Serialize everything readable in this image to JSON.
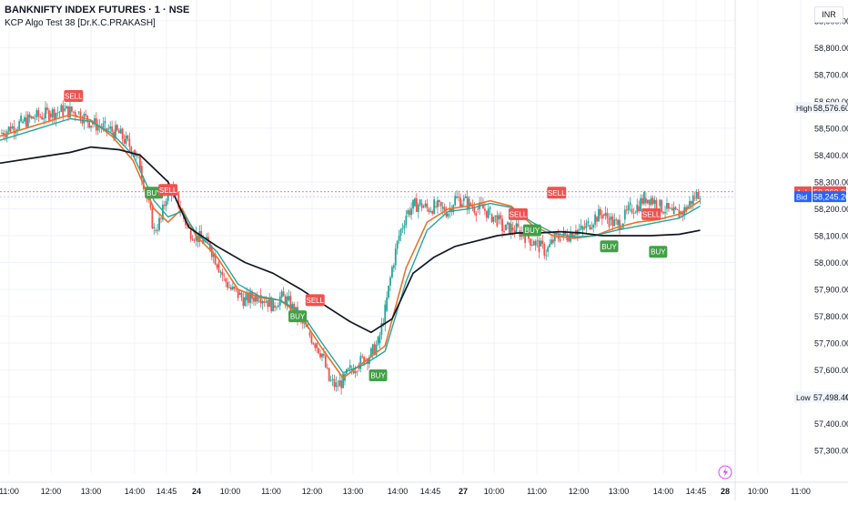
{
  "header": {
    "title": "BANKNIFTY INDEX FUTURES · 1 · NSE",
    "indicator": "KCP Algo Test 38 [Dr.K.C.PRAKASH]",
    "currency": "INR"
  },
  "colors": {
    "bull": "#26a69a",
    "bear": "#ef5350",
    "fast_ma": "#e8722c",
    "slow_ma": "#26a69a",
    "vwap": "#131722",
    "buy": "#43a047",
    "sell": "#ef5350",
    "bid": "#2962ff"
  },
  "chart_data": {
    "type": "line",
    "title": "BANKNIFTY INDEX FUTURES · 1 · NSE",
    "ylim": [
      57250,
      59000
    ],
    "y_ticks": [
      "58,900.00",
      "58,800.00",
      "58,700.00",
      "58,600.00",
      "58,500.00",
      "58,400.00",
      "58,300.00",
      "58,200.00",
      "58,100.00",
      "58,000.00",
      "57,900.00",
      "57,800.00",
      "57,700.00",
      "57,600.00",
      "57,500.00",
      "57,400.00",
      "57,300.00"
    ],
    "x_ticks": [
      "11:00",
      "12:00",
      "13:00",
      "14:00",
      "14:45",
      "24",
      "10:00",
      "11:00",
      "12:00",
      "13:00",
      "14:00",
      "14:45",
      "27",
      "10:00",
      "11:00",
      "12:00",
      "13:00",
      "14:00",
      "14:45",
      "28",
      "10:00",
      "11:00"
    ],
    "grid": true,
    "legend": "none",
    "x_domain": [
      0,
      210
    ],
    "series": [
      {
        "name": "Price",
        "kind": "candles",
        "x": [
          0,
          3,
          6,
          10,
          14,
          18,
          22,
          26,
          30,
          34,
          38,
          40,
          42,
          44,
          46,
          48,
          50,
          52,
          54,
          56,
          58,
          60,
          62,
          64,
          66,
          68,
          70,
          72,
          74,
          76,
          78,
          80,
          82,
          84,
          86,
          88,
          90,
          92,
          94,
          96,
          98,
          100,
          102,
          104,
          106,
          108,
          110,
          112,
          114,
          116,
          118,
          120,
          122,
          124,
          126,
          128,
          130,
          132,
          134,
          136,
          138,
          140,
          142,
          144,
          146,
          148,
          150,
          152,
          154,
          156,
          158,
          160,
          162,
          164,
          166,
          168,
          170,
          172,
          174,
          176,
          178,
          180,
          182,
          184,
          186,
          188,
          190,
          192,
          194,
          196,
          198,
          200
        ],
        "y": [
          58480,
          58500,
          58520,
          58540,
          58555,
          58565,
          58560,
          58520,
          58500,
          58480,
          58420,
          58360,
          58240,
          58120,
          58160,
          58280,
          58260,
          58180,
          58120,
          58100,
          58080,
          58060,
          58000,
          57940,
          57900,
          57880,
          57860,
          57870,
          57880,
          57860,
          57840,
          57870,
          57860,
          57820,
          57780,
          57740,
          57700,
          57660,
          57560,
          57540,
          57560,
          57600,
          57620,
          57640,
          57660,
          57700,
          57820,
          57980,
          58100,
          58180,
          58210,
          58220,
          58200,
          58210,
          58200,
          58190,
          58240,
          58230,
          58220,
          58200,
          58200,
          58180,
          58160,
          58120,
          58130,
          58120,
          58100,
          58080,
          58060,
          58040,
          58080,
          58100,
          58100,
          58120,
          58120,
          58140,
          58170,
          58180,
          58160,
          58140,
          58160,
          58200,
          58210,
          58240,
          58240,
          58210,
          58200,
          58180,
          58180,
          58200,
          58240,
          58263.4
        ]
      },
      {
        "name": "Fast MA",
        "kind": "line",
        "x": [
          0,
          10,
          20,
          26,
          32,
          38,
          44,
          48,
          52,
          56,
          62,
          68,
          74,
          80,
          86,
          92,
          98,
          104,
          110,
          116,
          122,
          128,
          134,
          140,
          146,
          152,
          158,
          164,
          170,
          176,
          182,
          188,
          194,
          200
        ],
        "y": [
          58470,
          58510,
          58550,
          58530,
          58470,
          58380,
          58200,
          58150,
          58200,
          58100,
          58020,
          57900,
          57870,
          57860,
          57800,
          57680,
          57570,
          57630,
          57690,
          57980,
          58150,
          58200,
          58210,
          58230,
          58210,
          58140,
          58100,
          58090,
          58100,
          58130,
          58150,
          58160,
          58180,
          58230
        ]
      },
      {
        "name": "Slow MA",
        "kind": "line",
        "x": [
          0,
          10,
          20,
          26,
          32,
          38,
          44,
          48,
          52,
          56,
          62,
          68,
          74,
          80,
          86,
          92,
          98,
          104,
          110,
          116,
          122,
          128,
          134,
          140,
          146,
          152,
          158,
          164,
          170,
          176,
          182,
          188,
          194,
          200
        ],
        "y": [
          58455,
          58495,
          58535,
          58525,
          58480,
          58400,
          58230,
          58170,
          58190,
          58110,
          58040,
          57920,
          57875,
          57860,
          57815,
          57700,
          57590,
          57620,
          57670,
          57930,
          58120,
          58190,
          58200,
          58220,
          58205,
          58150,
          58110,
          58095,
          58100,
          58120,
          58135,
          58150,
          58165,
          58210
        ]
      },
      {
        "name": "VWAP",
        "kind": "line",
        "x": [
          0,
          10,
          20,
          26,
          34,
          40,
          48,
          54,
          62,
          70,
          78,
          86,
          94,
          100,
          106,
          112,
          118,
          124,
          130,
          136,
          142,
          148,
          154,
          160,
          166,
          172,
          178,
          186,
          194,
          200
        ],
        "y": [
          58370,
          58390,
          58410,
          58430,
          58420,
          58400,
          58300,
          58130,
          58060,
          58000,
          57960,
          57900,
          57830,
          57780,
          57740,
          57790,
          57960,
          58020,
          58060,
          58080,
          58100,
          58110,
          58110,
          58115,
          58110,
          58100,
          58100,
          58100,
          58105,
          58120
        ]
      }
    ],
    "signals": [
      {
        "label": "SELL",
        "x": 21,
        "y": 58620
      },
      {
        "label": "BUY",
        "x": 44,
        "y": 58260
      },
      {
        "label": "SELL",
        "x": 48,
        "y": 58270
      },
      {
        "label": "SELL",
        "x": 90,
        "y": 57860
      },
      {
        "label": "BUY",
        "x": 85,
        "y": 57800
      },
      {
        "label": "BUY",
        "x": 108,
        "y": 57580
      },
      {
        "label": "SELL",
        "x": 148,
        "y": 58180
      },
      {
        "label": "BUY",
        "x": 152,
        "y": 58120
      },
      {
        "label": "SELL",
        "x": 159,
        "y": 58260
      },
      {
        "label": "BUY",
        "x": 174,
        "y": 58060
      },
      {
        "label": "SELL",
        "x": 186,
        "y": 58180
      },
      {
        "label": "BUY",
        "x": 188,
        "y": 58040
      }
    ],
    "price_labels": [
      {
        "label": "High",
        "value": "58,576.60",
        "y": 58576.6,
        "style": "plain"
      },
      {
        "label": "",
        "value": "58,263.40",
        "y": 58263.4,
        "style": "last"
      },
      {
        "label": "Ask",
        "value": "58,262.80",
        "y": 58262.8,
        "style": "ask"
      },
      {
        "label": "Bid",
        "value": "58,245.20",
        "y": 58245.2,
        "style": "bid"
      },
      {
        "label": "Low",
        "value": "57,498.40",
        "y": 57498.4,
        "style": "plain"
      }
    ]
  }
}
